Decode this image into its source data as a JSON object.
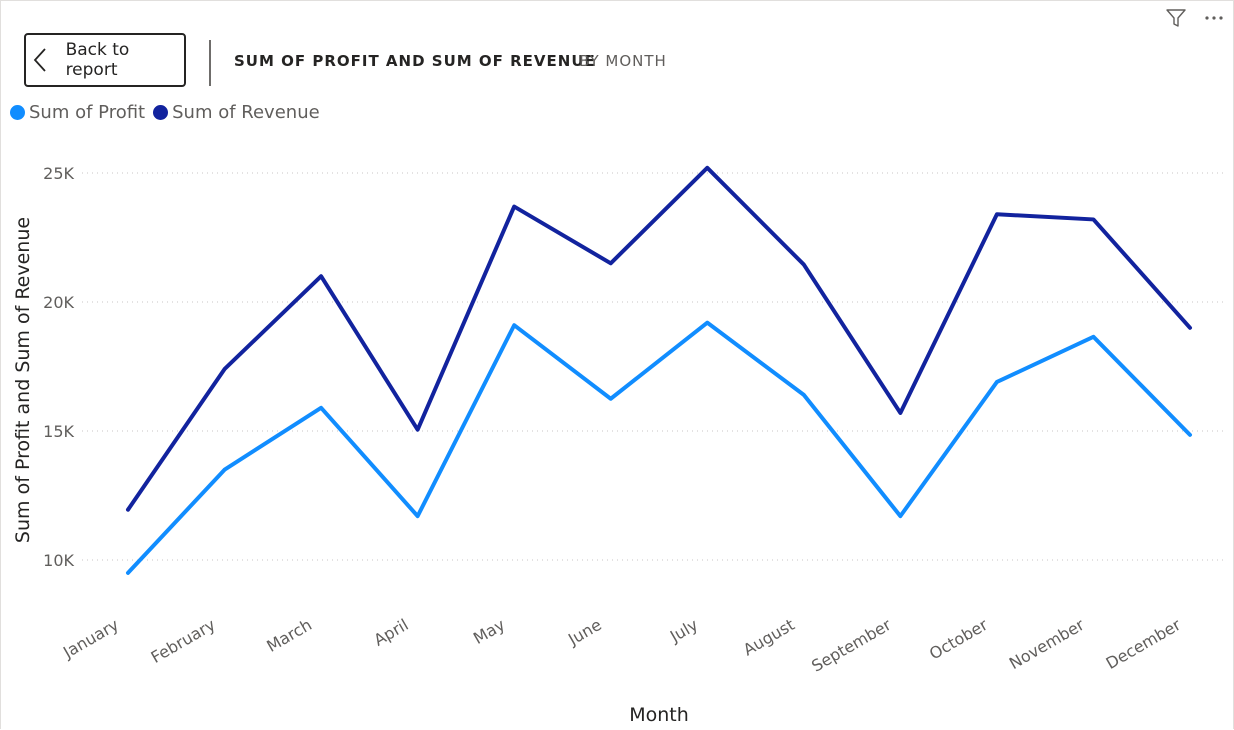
{
  "toolbar": {
    "back_label": "Back to report",
    "icons": [
      "filter-icon",
      "more-options-icon"
    ]
  },
  "header": {
    "title": "SUM OF PROFIT AND SUM OF REVENUE",
    "subtitle": "BY MONTH"
  },
  "colors": {
    "profit": "#118dff",
    "revenue": "#12239e",
    "grid": "#c8c6c4",
    "axis_text": "#605e5c"
  },
  "chart_data": {
    "type": "line",
    "x": [
      "January",
      "February",
      "March",
      "April",
      "May",
      "June",
      "July",
      "August",
      "September",
      "October",
      "November",
      "December"
    ],
    "series": [
      {
        "name": "Sum of Profit",
        "values": [
          9500,
          13500,
          15900,
          11700,
          19100,
          16250,
          19200,
          16400,
          11700,
          16900,
          18650,
          14850
        ]
      },
      {
        "name": "Sum of Revenue",
        "values": [
          11950,
          17400,
          21000,
          15050,
          23700,
          21500,
          25200,
          21450,
          15700,
          23400,
          23200,
          19000
        ]
      }
    ],
    "xlabel": "Month",
    "ylabel": "Sum of Profit and Sum of Revenue",
    "y_ticks": [
      {
        "value": 10000,
        "label": "10K"
      },
      {
        "value": 15000,
        "label": "15K"
      },
      {
        "value": 20000,
        "label": "20K"
      },
      {
        "value": 25000,
        "label": "25K"
      }
    ],
    "ylim": [
      8000,
      26500
    ],
    "grid": true,
    "legend_position": "top-left"
  }
}
